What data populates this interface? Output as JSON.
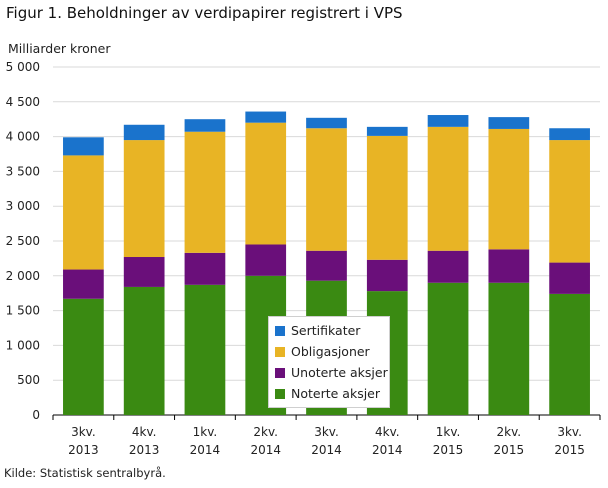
{
  "title": "Figur 1. Beholdninger av verdipapirer registrert i VPS",
  "source": "Kilde: Statistisk sentralbyrå.",
  "chart_data": {
    "type": "bar",
    "stacked": true,
    "title": "Figur 1. Beholdninger av verdipapirer registrert i VPS",
    "ylabel": "Milliarder  kroner",
    "xlabel": "",
    "ylim": [
      0,
      5000
    ],
    "yticks": [
      0,
      500,
      1000,
      1500,
      2000,
      2500,
      3000,
      3500,
      4000,
      4500,
      5000
    ],
    "ytick_labels": [
      "0",
      "500",
      "1 000",
      "1 500",
      "2 000",
      "2 500",
      "3 000",
      "3 500",
      "4 000",
      "4 500",
      "5 000"
    ],
    "grid": true,
    "legend_position": "center-bottom",
    "categories": [
      [
        "3kv.",
        "2013"
      ],
      [
        "4kv.",
        "2013"
      ],
      [
        "1kv.",
        "2014"
      ],
      [
        "2kv.",
        "2014"
      ],
      [
        "3kv.",
        "2014"
      ],
      [
        "4kv.",
        "2014"
      ],
      [
        "1kv.",
        "2015"
      ],
      [
        "2kv.",
        "2015"
      ],
      [
        "3kv.",
        "2015"
      ]
    ],
    "series": [
      {
        "name": "Noterte aksjer",
        "color": "#3a8a12",
        "values": [
          1670,
          1840,
          1870,
          2000,
          1930,
          1780,
          1900,
          1900,
          1740
        ]
      },
      {
        "name": "Unoterte aksjer",
        "color": "#6a0f7a",
        "values": [
          420,
          430,
          460,
          450,
          430,
          450,
          460,
          480,
          450
        ]
      },
      {
        "name": "Obligasjoner",
        "color": "#e8b425",
        "values": [
          1640,
          1680,
          1740,
          1750,
          1760,
          1780,
          1780,
          1730,
          1760
        ]
      },
      {
        "name": "Sertifikater",
        "color": "#1a73cc",
        "values": [
          260,
          220,
          180,
          160,
          150,
          130,
          170,
          170,
          170
        ]
      }
    ]
  }
}
